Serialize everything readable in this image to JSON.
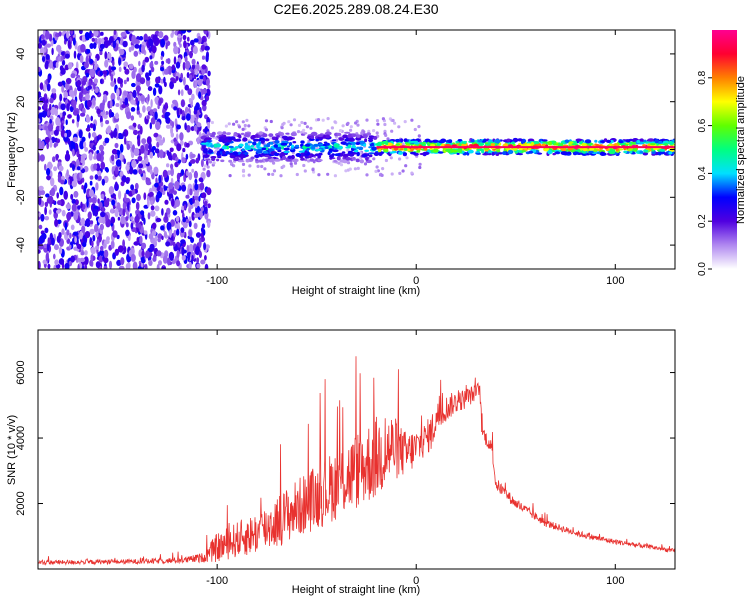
{
  "title": "C2E6.2025.289.08.24.E30",
  "chart_data": [
    {
      "type": "heatmap",
      "name": "spectrogram",
      "xlabel": "Height of straight line (km)",
      "ylabel": "Frequency (Hz)",
      "xlim": [
        -190,
        130
      ],
      "ylim": [
        -50,
        50
      ],
      "xticks": [
        -100,
        0,
        100
      ],
      "yticks": [
        -40,
        -20,
        0,
        20,
        40
      ],
      "noise_region_x": [
        -190,
        -107
      ],
      "signal_center_hz": 1,
      "signal_bands": [
        {
          "x_start": -107,
          "x_end": -20,
          "half_width_hz": 6,
          "peak_amplitude": 0.45
        },
        {
          "x_start": -20,
          "x_end": 130,
          "half_width_hz": 3,
          "peak_amplitude": 0.95
        }
      ],
      "colorbar": {
        "label": "Normalized spectral amplitude",
        "range": [
          0,
          1
        ],
        "ticks": [
          "0.0",
          "0.2",
          "0.4",
          "0.6",
          "0.8"
        ],
        "colors": [
          "#ffffff",
          "#b088f0",
          "#5000e0",
          "#0000ff",
          "#00e0ff",
          "#00ff80",
          "#60ff00",
          "#ffff00",
          "#ff8000",
          "#ff0030",
          "#ff0090"
        ]
      }
    },
    {
      "type": "line",
      "name": "snr",
      "xlabel": "Height of straight line (km)",
      "ylabel": "SNR (10 * v/v)",
      "xlim": [
        -190,
        130
      ],
      "ylim": [
        0,
        7300
      ],
      "xticks": [
        -100,
        0,
        100
      ],
      "yticks": [
        2000,
        4000,
        6000
      ],
      "color": "#e8322f",
      "series": [
        {
          "name": "SNR",
          "x": [
            -190,
            -170,
            -150,
            -130,
            -115,
            -107,
            -100,
            -90,
            -80,
            -70,
            -60,
            -50,
            -40,
            -30,
            -20,
            -12,
            -8,
            -5,
            0,
            5,
            8,
            10,
            15,
            20,
            25,
            30,
            32,
            33,
            38,
            40,
            45,
            50,
            55,
            60,
            65,
            70,
            80,
            90,
            100,
            110,
            120,
            130
          ],
          "y": [
            200,
            210,
            220,
            240,
            280,
            350,
            650,
            900,
            1100,
            1450,
            1850,
            2200,
            2600,
            3000,
            3400,
            3700,
            3600,
            3500,
            3700,
            4000,
            4200,
            4600,
            4900,
            5100,
            5200,
            5400,
            5500,
            4200,
            3700,
            2600,
            2300,
            2000,
            1800,
            1600,
            1400,
            1300,
            1100,
            950,
            830,
            740,
            650,
            550
          ],
          "amp": [
            70,
            70,
            70,
            80,
            100,
            150,
            450,
            550,
            650,
            800,
            900,
            1000,
            1100,
            1200,
            1300,
            1100,
            800,
            700,
            600,
            500,
            600,
            500,
            400,
            350,
            300,
            250,
            250,
            250,
            200,
            200,
            180,
            150,
            150,
            130,
            120,
            110,
            100,
            90,
            80,
            80,
            70,
            60
          ]
        }
      ]
    }
  ]
}
